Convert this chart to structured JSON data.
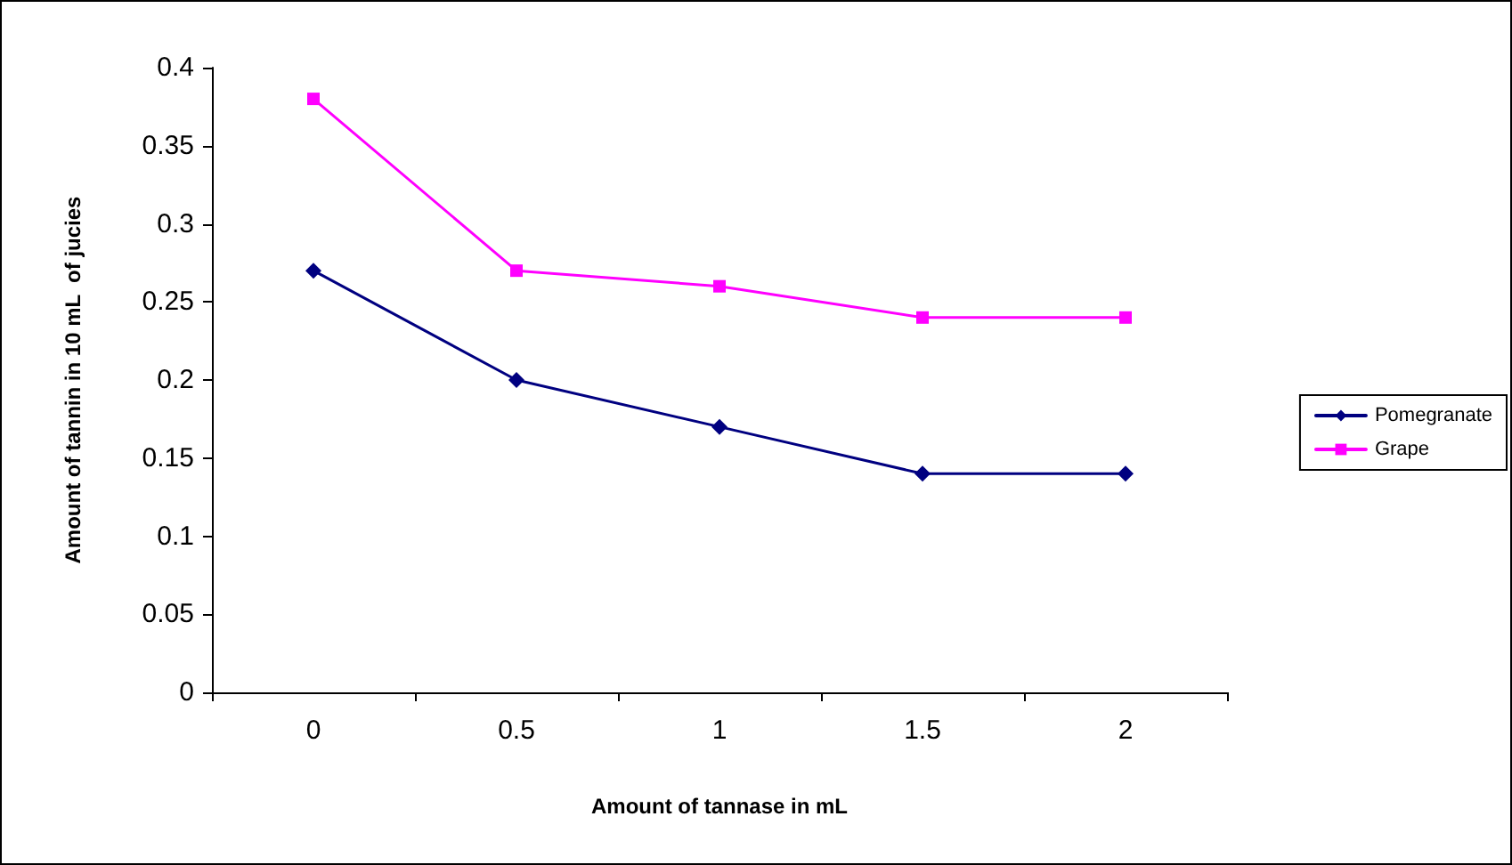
{
  "chart_data": {
    "type": "line",
    "xlabel": "Amount of tannase in mL",
    "ylabel": "Amount of tannin in 10 mL  of jucies",
    "categories": [
      "0",
      "0.5",
      "1",
      "1.5",
      "2"
    ],
    "series": [
      {
        "name": "Pomegranate",
        "color": "#000080",
        "marker": "diamond",
        "values": [
          0.27,
          0.2,
          0.17,
          0.14,
          0.14
        ]
      },
      {
        "name": "Grape",
        "color": "#ff00ff",
        "marker": "square",
        "values": [
          0.38,
          0.27,
          0.26,
          0.24,
          0.24
        ]
      }
    ],
    "ylim": [
      0,
      0.4
    ],
    "yticks": [
      0,
      0.05,
      0.1,
      0.15,
      0.2,
      0.25,
      0.3,
      0.35,
      0.4
    ],
    "grid": false,
    "legend": "right"
  }
}
